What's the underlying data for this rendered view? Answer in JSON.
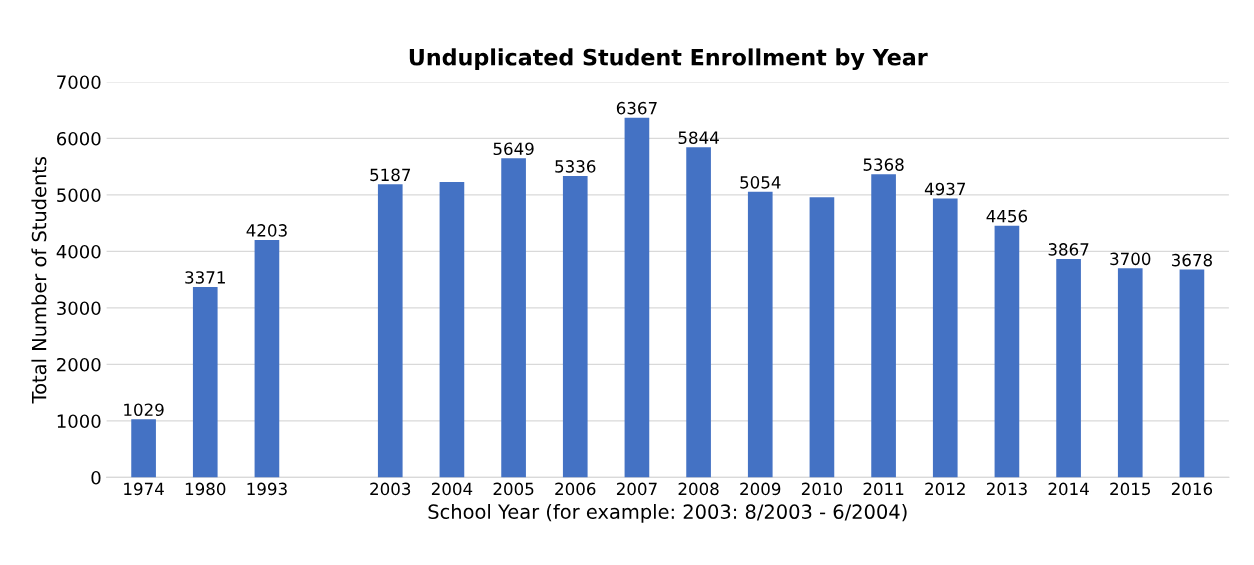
{
  "chart_data": {
    "type": "bar",
    "title": "Unduplicated Student Enrollment by Year",
    "xlabel": "School Year (for example: 2003: 8/2003 - 6/2004)",
    "ylabel": "Total Number of Students",
    "categories": [
      "1974",
      "1980",
      "1993",
      null,
      "2003",
      "2004",
      "2005",
      "2006",
      "2007",
      "2008",
      "2009",
      "2010",
      "2011",
      "2012",
      "2013",
      "2014",
      "2015",
      "2016"
    ],
    "values": [
      1029,
      3371,
      4203,
      null,
      5187,
      5230,
      5649,
      5336,
      6367,
      5844,
      5054,
      4960,
      5368,
      4937,
      4456,
      3867,
      3700,
      3678
    ],
    "value_labels": [
      "1029",
      "3371",
      "4203",
      null,
      "5187",
      null,
      "5649",
      "5336",
      "6367",
      "5844",
      "5054",
      null,
      "5368",
      "4937",
      "4456",
      "3867",
      "3700",
      "3678"
    ],
    "color": "#4472c4",
    "ylim": [
      0,
      7000
    ],
    "yticks": [
      0,
      1000,
      2000,
      3000,
      4000,
      5000,
      6000,
      7000
    ],
    "grid": "y",
    "legend": false
  }
}
